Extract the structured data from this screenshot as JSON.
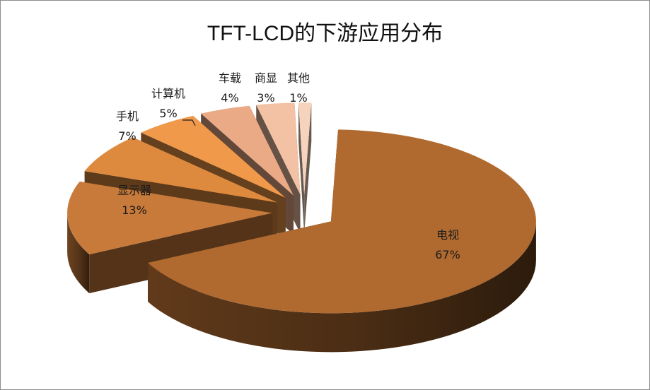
{
  "chart_data": {
    "type": "pie",
    "title": "TFT-LCD的下游应用分布",
    "slices": [
      {
        "label": "电视",
        "value": 67,
        "value_label": "67%",
        "color": "#B06A30"
      },
      {
        "label": "显示器",
        "value": 13,
        "value_label": "13%",
        "color": "#C77A3A"
      },
      {
        "label": "手机",
        "value": 7,
        "value_label": "7%",
        "color": "#DE8A3E"
      },
      {
        "label": "计算机",
        "value": 5,
        "value_label": "5%",
        "color": "#F0994A"
      },
      {
        "label": "车载",
        "value": 4,
        "value_label": "4%",
        "color": "#EBAA86"
      },
      {
        "label": "商显",
        "value": 3,
        "value_label": "3%",
        "color": "#F3C2A5"
      },
      {
        "label": "其他",
        "value": 1,
        "value_label": "1%",
        "color": "#F6D3BD"
      }
    ],
    "style": "3d-exploded",
    "legend": "none",
    "labels": "outside-with-percent"
  }
}
